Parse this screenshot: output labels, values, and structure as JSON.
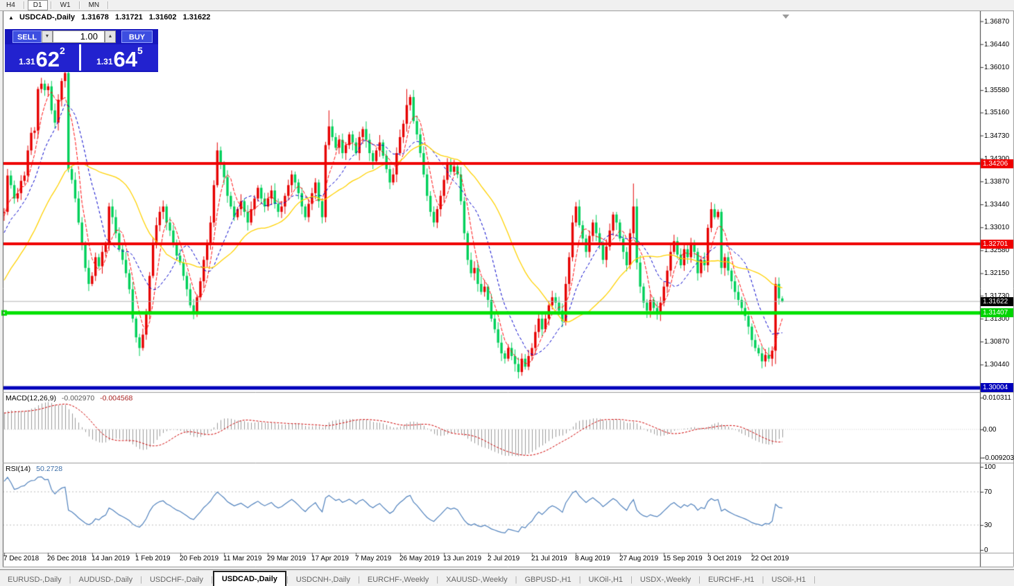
{
  "toolbar": {
    "timeframes": [
      {
        "label": "H4",
        "active": false
      },
      {
        "label": "D1",
        "active": true
      },
      {
        "label": "W1",
        "active": false
      },
      {
        "label": "MN",
        "active": false
      }
    ]
  },
  "chart": {
    "title": {
      "marker": "▲",
      "symbol": "USDCAD-,Daily",
      "open": "1.31678",
      "high": "1.31721",
      "low": "1.31602",
      "close": "1.31622"
    },
    "trade_panel": {
      "sell_label": "SELL",
      "buy_label": "BUY",
      "volume": "1.00",
      "down_arrow": "▼",
      "up_arrow": "▲",
      "sell_price": {
        "prefix": "1.31",
        "big": "62",
        "sup": "2"
      },
      "buy_price": {
        "prefix": "1.31",
        "big": "64",
        "sup": "5"
      }
    }
  },
  "chart_data": {
    "type": "candlestick",
    "symbol": "USDCAD-,Daily",
    "timeframe": "Daily",
    "x_labels": [
      "7 Dec 2018",
      "26 Dec 2018",
      "14 Jan 2019",
      "1 Feb 2019",
      "20 Feb 2019",
      "11 Mar 2019",
      "29 Mar 2019",
      "17 Apr 2019",
      "7 May 2019",
      "26 May 2019",
      "13 Jun 2019",
      "2 Jul 2019",
      "21 Jul 2019",
      "8 Aug 2019",
      "27 Aug 2019",
      "15 Sep 2019",
      "3 Oct 2019",
      "22 Oct 2019"
    ],
    "bars_per_label": 13,
    "price_axis_ticks": [
      "1.36870",
      "1.36440",
      "1.36010",
      "1.35580",
      "1.35160",
      "1.34730",
      "1.34300",
      "1.33870",
      "1.33440",
      "1.33010",
      "1.32580",
      "1.32150",
      "1.31730",
      "1.31300",
      "1.30870",
      "1.30440"
    ],
    "main_ylim": [
      1.29925,
      1.3706
    ],
    "warmup_closes": [
      1.305,
      1.3065,
      1.3058,
      1.308,
      1.3095,
      1.3088,
      1.311,
      1.3125,
      1.3118,
      1.314,
      1.3155,
      1.3148,
      1.317,
      1.3185,
      1.3178,
      1.32,
      1.3215,
      1.3208,
      1.323,
      1.3245,
      1.3238,
      1.326,
      1.3275,
      1.3268,
      1.329,
      1.3305,
      1.3298,
      1.332,
      1.3335,
      1.3328
    ],
    "closes": [
      1.333,
      1.3398,
      1.338,
      1.3355,
      1.3365,
      1.3388,
      1.3398,
      1.3445,
      1.3478,
      1.3482,
      1.356,
      1.357,
      1.3558,
      1.3565,
      1.352,
      1.3497,
      1.354,
      1.3575,
      1.359,
      1.341,
      1.339,
      1.3355,
      1.331,
      1.327,
      1.3225,
      1.3195,
      1.321,
      1.3245,
      1.3228,
      1.3255,
      1.327,
      1.334,
      1.332,
      1.329,
      1.326,
      1.324,
      1.3215,
      1.3185,
      1.313,
      1.3095,
      1.3075,
      1.31,
      1.314,
      1.321,
      1.327,
      1.3305,
      1.333,
      1.334,
      1.331,
      1.3295,
      1.327,
      1.3248,
      1.3235,
      1.321,
      1.3185,
      1.3155,
      1.314,
      1.317,
      1.32,
      1.324,
      1.327,
      1.331,
      1.338,
      1.3445,
      1.342,
      1.3395,
      1.336,
      1.334,
      1.332,
      1.3335,
      1.335,
      1.333,
      1.331,
      1.3335,
      1.3355,
      1.3375,
      1.3355,
      1.334,
      1.3355,
      1.337,
      1.3345,
      1.333,
      1.334,
      1.336,
      1.338,
      1.34,
      1.3385,
      1.3365,
      1.334,
      1.332,
      1.3345,
      1.3365,
      1.3385,
      1.335,
      1.332,
      1.3455,
      1.349,
      1.347,
      1.345,
      1.3465,
      1.344,
      1.3455,
      1.3475,
      1.346,
      1.344,
      1.347,
      1.3485,
      1.3465,
      1.344,
      1.3425,
      1.3445,
      1.346,
      1.3435,
      1.341,
      1.3385,
      1.34,
      1.344,
      1.347,
      1.3495,
      1.353,
      1.3545,
      1.35,
      1.3475,
      1.344,
      1.34,
      1.336,
      1.333,
      1.331,
      1.3335,
      1.336,
      1.339,
      1.342,
      1.3405,
      1.3415,
      1.34,
      1.335,
      1.329,
      1.324,
      1.3215,
      1.3225,
      1.3195,
      1.318,
      1.319,
      1.3165,
      1.313,
      1.311,
      1.3085,
      1.3065,
      1.3055,
      1.3075,
      1.306,
      1.3045,
      1.303,
      1.3055,
      1.304,
      1.306,
      1.3075,
      1.3105,
      1.313,
      1.311,
      1.313,
      1.3155,
      1.317,
      1.316,
      1.3145,
      1.3125,
      1.3195,
      1.3245,
      1.331,
      1.334,
      1.3305,
      1.328,
      1.3255,
      1.3285,
      1.331,
      1.329,
      1.327,
      1.324,
      1.3265,
      1.3295,
      1.3325,
      1.331,
      1.328,
      1.3255,
      1.323,
      1.329,
      1.334,
      1.3235,
      1.319,
      1.316,
      1.3145,
      1.3165,
      1.315,
      1.314,
      1.316,
      1.319,
      1.322,
      1.3255,
      1.3275,
      1.325,
      1.323,
      1.326,
      1.3245,
      1.327,
      1.3255,
      1.3215,
      1.324,
      1.323,
      1.33,
      1.3335,
      1.332,
      1.333,
      1.3225,
      1.3245,
      1.322,
      1.32,
      1.318,
      1.3165,
      1.315,
      1.3135,
      1.3115,
      1.309,
      1.3075,
      1.3065,
      1.305,
      1.3062,
      1.3055,
      1.307,
      1.3195,
      1.3168,
      1.31622
    ],
    "current_bar": {
      "open": 1.31678,
      "high": 1.31721,
      "low": 1.31602,
      "close": 1.31622
    },
    "wick_overrides": {
      "40": {
        "low": 1.306
      },
      "63": {
        "high": 1.346
      },
      "96": {
        "high": 1.352
      },
      "119": {
        "high": 1.356
      },
      "152": {
        "low": 1.3018
      },
      "186": {
        "high": 1.3383
      },
      "209": {
        "high": 1.3348
      },
      "224": {
        "low": 1.3037
      },
      "228": {
        "low": 1.3045
      }
    },
    "hlines": [
      {
        "price": 1.34206,
        "color": "#ef0000",
        "width": 4,
        "label": "1.34206",
        "label_bg": "#ef0000",
        "label_color": "#ffffff"
      },
      {
        "price": 1.32701,
        "color": "#ef0000",
        "width": 4,
        "label": "1.32701",
        "label_bg": "#ef0000",
        "label_color": "#ffffff"
      },
      {
        "price": 1.31407,
        "color": "#00e100",
        "width": 5,
        "label": "1.31407",
        "label_bg": "#00d400",
        "label_color": "#ffffff"
      },
      {
        "price": 1.30004,
        "color": "#0000bb",
        "width": 5,
        "label": "1.30004",
        "label_bg": "#0000bb",
        "label_color": "#ffffff"
      }
    ],
    "current_price": {
      "price": 1.31622,
      "line_color": "#b4b4b4",
      "label": "1.31622",
      "label_bg": "#000000",
      "label_color": "#ffffff"
    },
    "moving_averages": [
      {
        "period": 5,
        "color": "#ff1010",
        "dash": [
          5,
          2
        ]
      },
      {
        "period": 12,
        "color": "#0000cc",
        "dash": [
          4,
          3
        ]
      },
      {
        "period": 30,
        "color": "#ffd200",
        "dash": []
      }
    ],
    "colors": {
      "up": "#e60000",
      "down": "#00d05a",
      "histogram": "#9a9a9a",
      "signal": "#d00000",
      "rsi_line": "#4f81bd"
    },
    "macd": {
      "name": "MACD(12,26,9)",
      "main_value": "-0.002970",
      "signal_value": "-0.004568",
      "params": [
        12,
        26,
        9
      ],
      "ylim": [
        -0.0104,
        0.0108
      ],
      "axis": [
        {
          "text": "0.010311",
          "value": 0.010311
        },
        {
          "text": "0.00",
          "value": 0
        },
        {
          "text": "-0.009203",
          "value": -0.009203
        }
      ]
    },
    "rsi": {
      "name": "RSI(14)",
      "value": "50.2728",
      "period": 14,
      "axis": [
        {
          "text": "100",
          "value": 100
        },
        {
          "text": "70",
          "value": 70
        },
        {
          "text": "30",
          "value": 30
        },
        {
          "text": "0",
          "value": 0
        }
      ],
      "level_lines": [
        70,
        30
      ]
    }
  },
  "tabbar": {
    "tabs": [
      {
        "label": "EURUSD-,Daily",
        "active": false
      },
      {
        "label": "AUDUSD-,Daily",
        "active": false
      },
      {
        "label": "USDCHF-,Daily",
        "active": false
      },
      {
        "label": "USDCAD-,Daily",
        "active": true
      },
      {
        "label": "USDCNH-,Daily",
        "active": false
      },
      {
        "label": "EURCHF-,Weekly",
        "active": false
      },
      {
        "label": "XAUUSD-,Weekly",
        "active": false
      },
      {
        "label": "GBPUSD-,H1",
        "active": false
      },
      {
        "label": "UKOil-,H1",
        "active": false
      },
      {
        "label": "USDX-,Weekly",
        "active": false
      },
      {
        "label": "EURCHF-,H1",
        "active": false
      },
      {
        "label": "USOil-,H1",
        "active": false
      }
    ],
    "separator": "|",
    "arrows": {
      "left": "◄",
      "right": "►"
    }
  }
}
